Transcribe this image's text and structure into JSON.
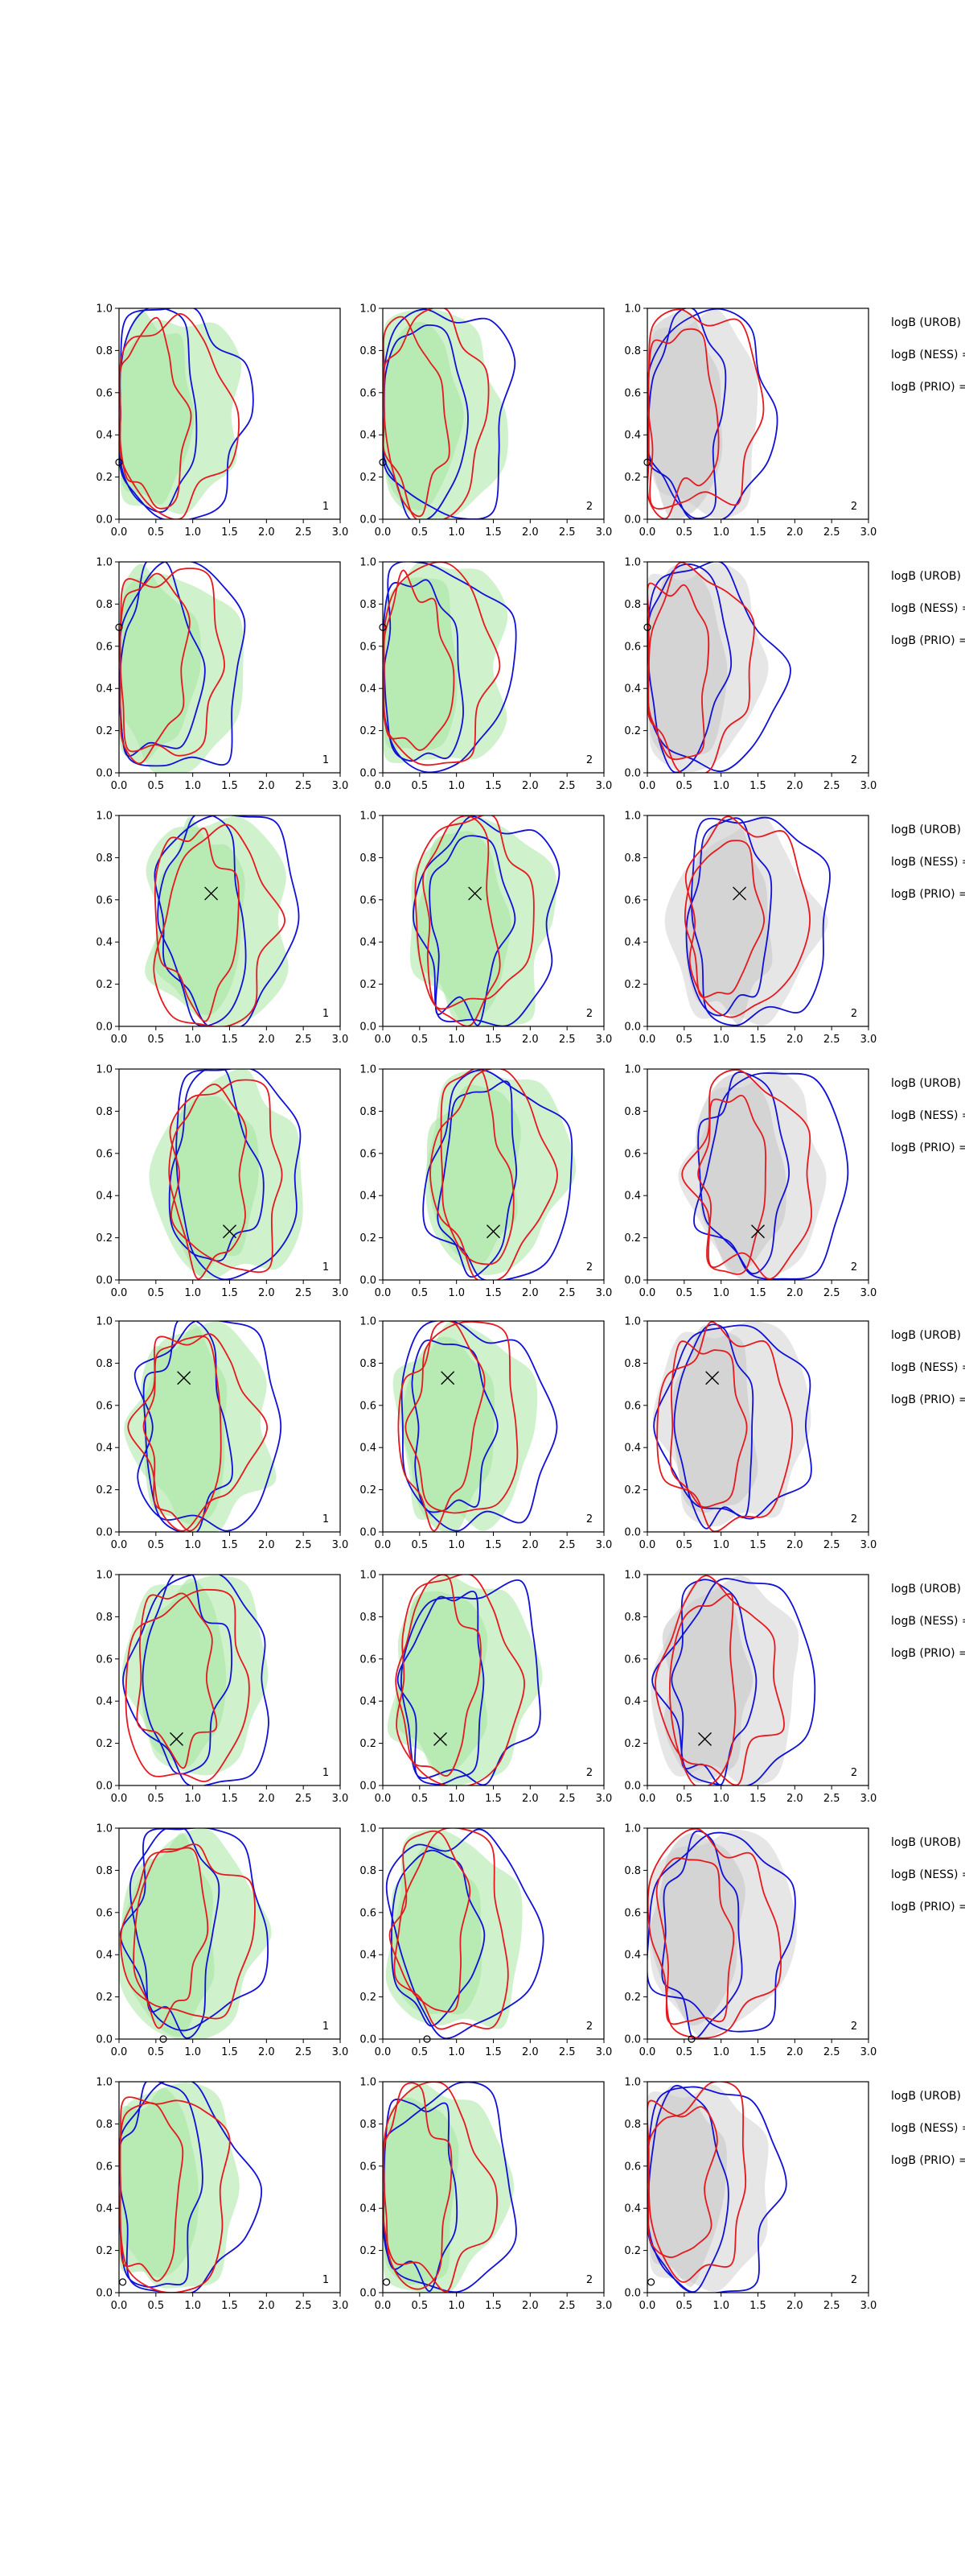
{
  "colors": {
    "green_fill": "#a8e6a3",
    "gray_fill": "#c8c8c8",
    "red_line": "#e6191e",
    "blue_line": "#1010d8",
    "marker": "#000000"
  },
  "chart_data": {
    "type": "contour-grid",
    "rows": 8,
    "columns": [
      {
        "fill": "green",
        "corner_label": "1"
      },
      {
        "fill": "green",
        "corner_label": "2"
      },
      {
        "fill": "gray",
        "corner_label": "2"
      }
    ],
    "xlim": [
      0,
      3.0
    ],
    "ylim": [
      0,
      1.0
    ],
    "xticks": [
      "0.0",
      "0.5",
      "1.0",
      "1.5",
      "2.0",
      "2.5",
      "3.0"
    ],
    "yticks": [
      "0.0",
      "0.2",
      "0.4",
      "0.6",
      "0.8",
      "1.0"
    ],
    "side_labels": [
      "logB (UROB) =",
      "logB (NESS) =",
      "logB (PRIO) ="
    ],
    "panels": [
      {
        "marker": [
          0.0,
          0.27
        ],
        "marker_style": "edge"
      },
      {
        "marker": [
          0.0,
          0.69
        ],
        "marker_style": "edge"
      },
      {
        "marker": [
          1.25,
          0.63
        ],
        "marker_style": "x"
      },
      {
        "marker": [
          1.5,
          0.23
        ],
        "marker_style": "x"
      },
      {
        "marker": [
          0.88,
          0.73
        ],
        "marker_style": "x"
      },
      {
        "marker": [
          0.78,
          0.22
        ],
        "marker_style": "x"
      },
      {
        "marker": [
          0.6,
          0.0
        ],
        "marker_style": "edge"
      },
      {
        "marker": [
          0.05,
          0.05
        ],
        "marker_style": "edge"
      }
    ]
  }
}
